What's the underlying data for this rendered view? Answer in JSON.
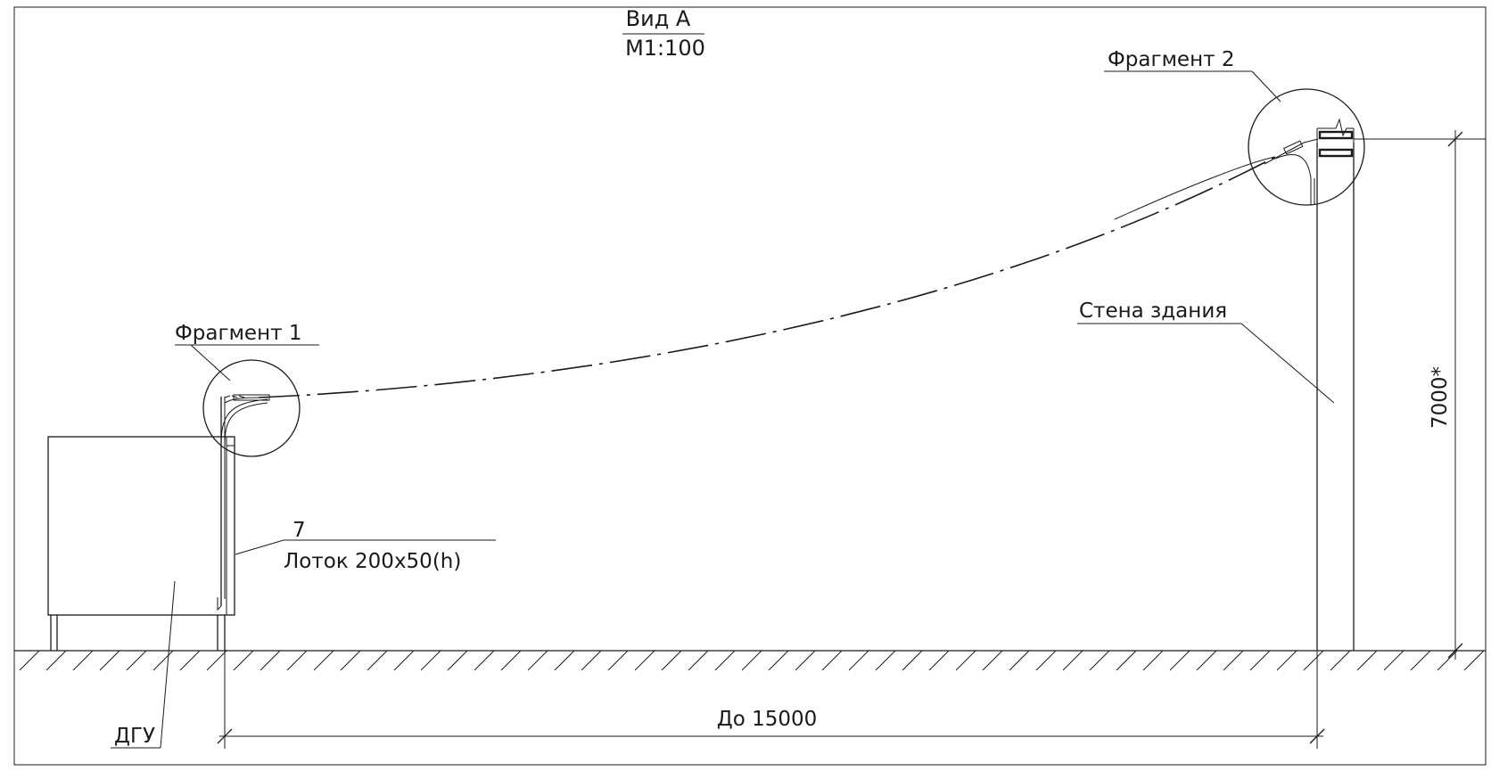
{
  "view": {
    "title": "Вид А",
    "scale": "М1:100"
  },
  "callouts": {
    "fragment1": "Фрагмент 1",
    "fragment2": "Фрагмент 2",
    "wall": "Стена здания",
    "tray_number": "7",
    "tray": "Лоток 200х50(h)",
    "dgu": "ДГУ"
  },
  "dimensions": {
    "height": "7000*",
    "length": "До 15000"
  }
}
